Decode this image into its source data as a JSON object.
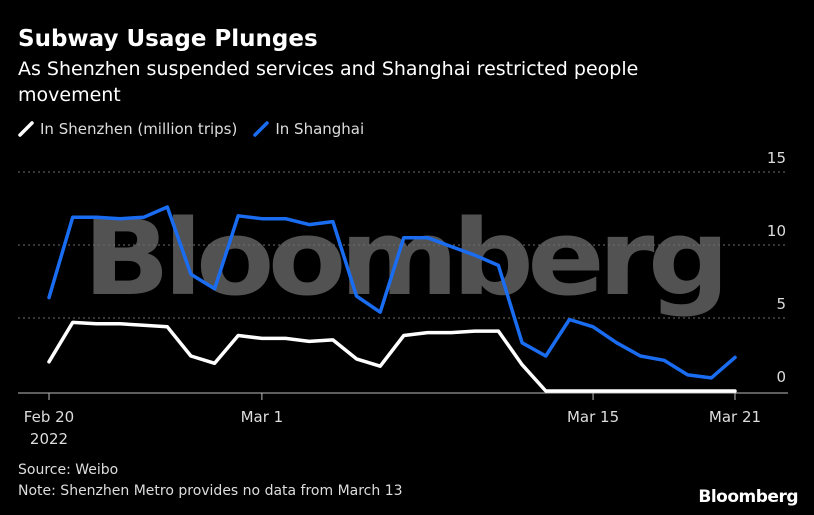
{
  "title": "Subway Usage Plunges",
  "subtitle": "As Shenzhen suspended services and Shanghai restricted people movement",
  "watermark": "Bloomberg",
  "brand": "Bloomberg",
  "source": "Source: Weibo",
  "note": "Note: Shenzhen Metro provides no data from March 13",
  "colors": {
    "background": "#000000",
    "shenzhen": "#ffffff",
    "shanghai": "#1a6cf0",
    "grid": "#6e6e6e",
    "text": "#dddddd"
  },
  "chart_data": {
    "type": "line",
    "x": [
      "Feb 20",
      "Feb 21",
      "Feb 22",
      "Feb 23",
      "Feb 24",
      "Feb 25",
      "Feb 26",
      "Feb 27",
      "Feb 28",
      "Mar 1",
      "Mar 2",
      "Mar 3",
      "Mar 4",
      "Mar 5",
      "Mar 6",
      "Mar 7",
      "Mar 8",
      "Mar 9",
      "Mar 10",
      "Mar 11",
      "Mar 12",
      "Mar 13",
      "Mar 14",
      "Mar 15",
      "Mar 16",
      "Mar 17",
      "Mar 18",
      "Mar 19",
      "Mar 20",
      "Mar 21"
    ],
    "x_ticks": [
      {
        "label": "Feb 20",
        "sublabel": "2022",
        "index": 0
      },
      {
        "label": "Mar 1",
        "sublabel": "",
        "index": 9
      },
      {
        "label": "Mar 15",
        "sublabel": "",
        "index": 23
      },
      {
        "label": "Mar 21",
        "sublabel": "",
        "index": 29
      }
    ],
    "y_ticks": [
      0,
      5,
      10,
      15
    ],
    "ylim": [
      0,
      15
    ],
    "grid": true,
    "legend_position": "top-left",
    "series": [
      {
        "name": "In Shenzhen (million trips)",
        "color": "#ffffff",
        "values": [
          2.0,
          4.7,
          4.6,
          4.6,
          4.5,
          4.4,
          2.4,
          1.9,
          3.8,
          3.6,
          3.6,
          3.4,
          3.5,
          2.2,
          1.7,
          3.8,
          4.0,
          4.0,
          4.1,
          4.1,
          1.8,
          0.0,
          0.0,
          0.0,
          0.0,
          0.0,
          0.0,
          0.0,
          0.0,
          0.0
        ]
      },
      {
        "name": "In Shanghai",
        "color": "#1a6cf0",
        "values": [
          6.4,
          11.9,
          11.9,
          11.8,
          11.9,
          12.6,
          8.0,
          7.0,
          12.0,
          11.8,
          11.8,
          11.4,
          11.6,
          6.5,
          5.4,
          10.5,
          10.5,
          9.9,
          9.3,
          8.6,
          3.3,
          2.4,
          4.9,
          4.4,
          3.3,
          2.4,
          2.1,
          1.1,
          0.9,
          2.3
        ]
      }
    ]
  }
}
